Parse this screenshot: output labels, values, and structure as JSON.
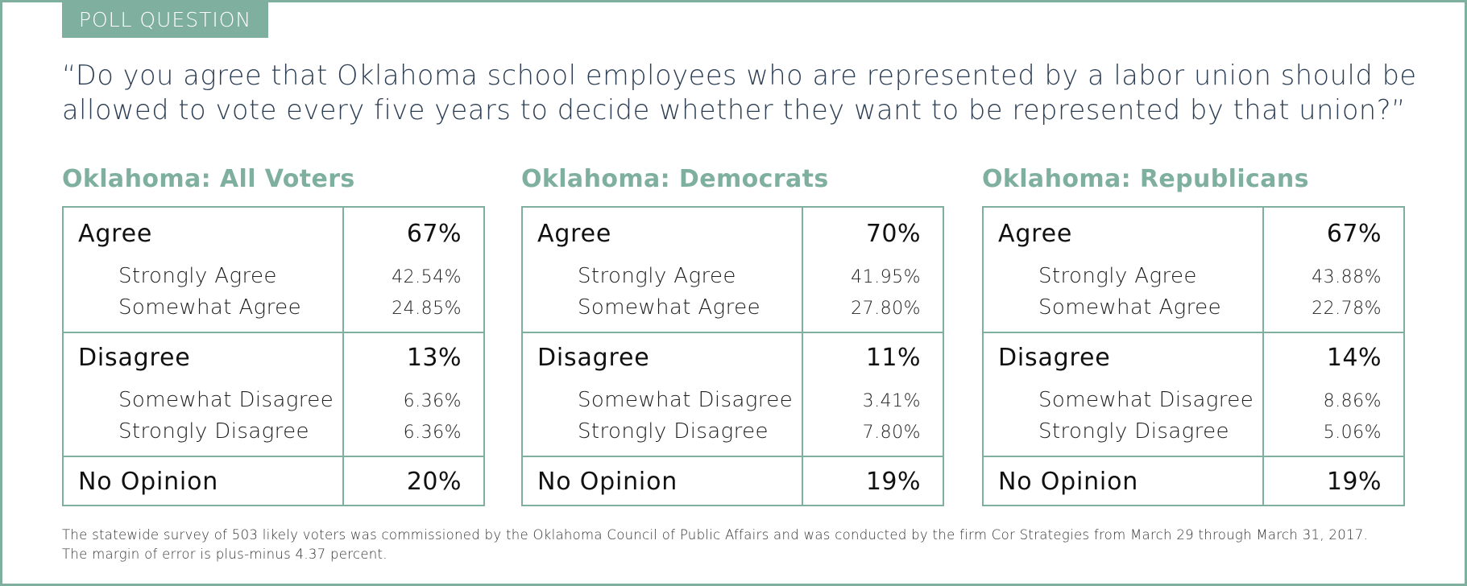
{
  "tag": "POLL QUESTION",
  "question": "“Do you agree that Oklahoma school employees who are represented by a labor union should be allowed to vote every five years to decide whether they want to be represented by that union?”",
  "colors": {
    "accent": "#7fb09f",
    "question_text": "#2c3e54"
  },
  "panels": [
    {
      "title": "Oklahoma: All Voters",
      "agree": {
        "label": "Agree",
        "value": "67%"
      },
      "strongly_agree": {
        "label": "Strongly Agree",
        "value": "42.54%"
      },
      "somewhat_agree": {
        "label": "Somewhat Agree",
        "value": "24.85%"
      },
      "disagree": {
        "label": "Disagree",
        "value": "13%"
      },
      "somewhat_disagree": {
        "label": "Somewhat Disagree",
        "value": "6.36%"
      },
      "strongly_disagree": {
        "label": "Strongly Disagree",
        "value": "6.36%"
      },
      "no_opinion": {
        "label": "No Opinion",
        "value": "20%"
      }
    },
    {
      "title": "Oklahoma: Democrats",
      "agree": {
        "label": "Agree",
        "value": "70%"
      },
      "strongly_agree": {
        "label": "Strongly Agree",
        "value": "41.95%"
      },
      "somewhat_agree": {
        "label": "Somewhat Agree",
        "value": "27.80%"
      },
      "disagree": {
        "label": "Disagree",
        "value": "11%"
      },
      "somewhat_disagree": {
        "label": "Somewhat Disagree",
        "value": "3.41%"
      },
      "strongly_disagree": {
        "label": "Strongly Disagree",
        "value": "7.80%"
      },
      "no_opinion": {
        "label": "No Opinion",
        "value": "19%"
      }
    },
    {
      "title": "Oklahoma: Republicans",
      "agree": {
        "label": "Agree",
        "value": "67%"
      },
      "strongly_agree": {
        "label": "Strongly Agree",
        "value": "43.88%"
      },
      "somewhat_agree": {
        "label": "Somewhat Agree",
        "value": "22.78%"
      },
      "disagree": {
        "label": "Disagree",
        "value": "14%"
      },
      "somewhat_disagree": {
        "label": "Somewhat Disagree",
        "value": "8.86%"
      },
      "strongly_disagree": {
        "label": "Strongly Disagree",
        "value": "5.06%"
      },
      "no_opinion": {
        "label": "No Opinion",
        "value": "19%"
      }
    }
  ],
  "footnote": {
    "line1": "The statewide survey of 503 likely voters was commissioned by the Oklahoma Council of Public Affairs and was conducted by the firm Cor Strategies from March 29 through March 31, 2017.",
    "line2": "The margin of error is plus-minus 4.37 percent."
  }
}
